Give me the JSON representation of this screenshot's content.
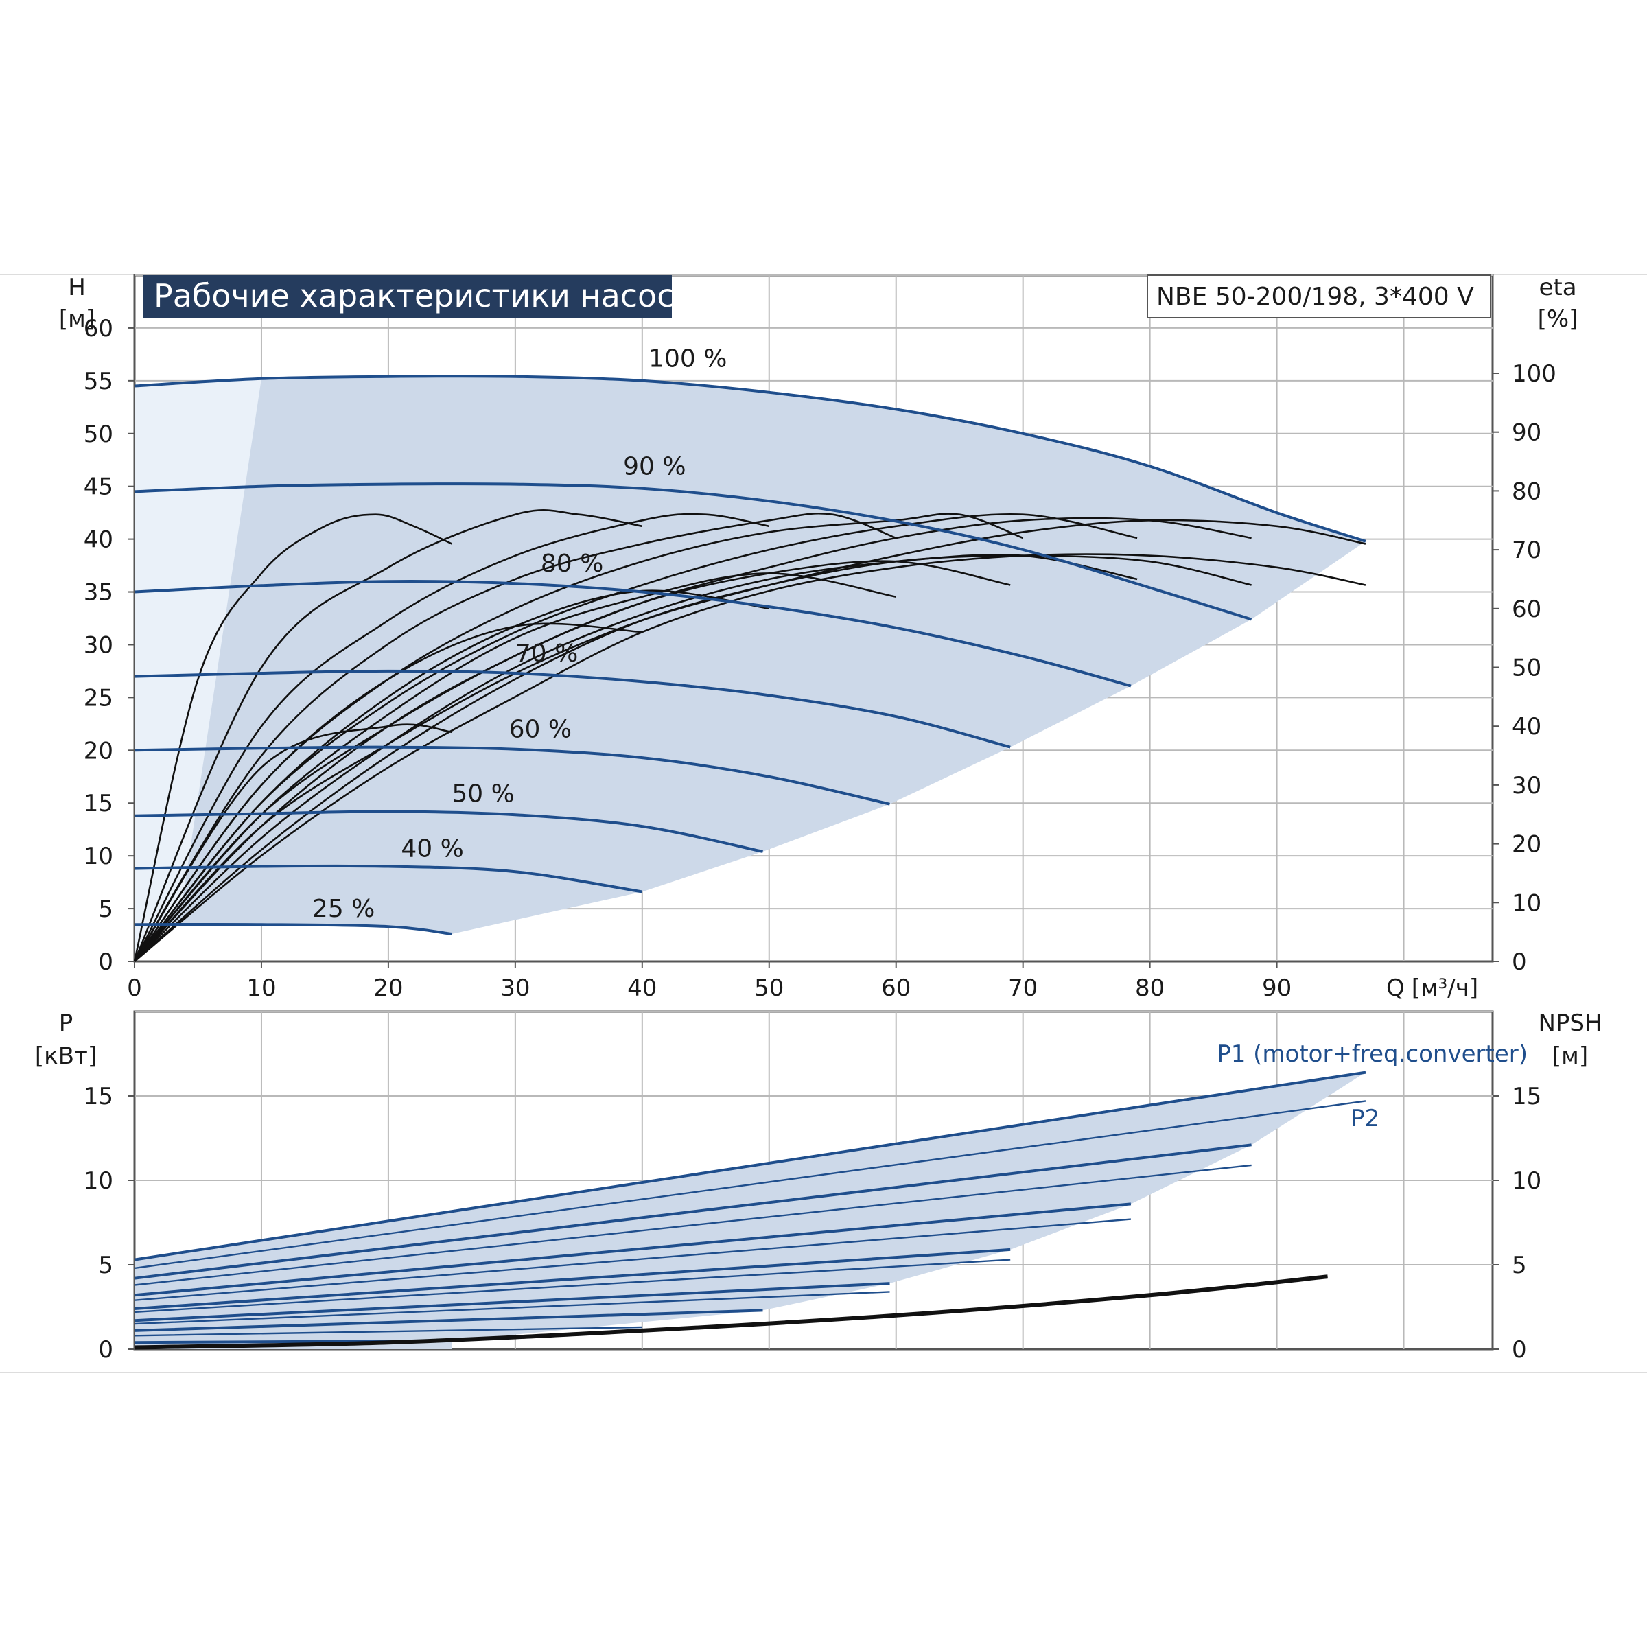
{
  "chart_data": [
    {
      "type": "line",
      "title": "Рабочие характеристики насоса",
      "model": "NBE 50-200/198, 3*400 V",
      "ylabel": "H",
      "yunit": "[м]",
      "y2label": "eta",
      "y2unit": "[%]",
      "xlabel": "Q",
      "xunit": "[м³/ч]",
      "xlim": [
        0,
        107
      ],
      "ylim": [
        0,
        65
      ],
      "y2lim": [
        0,
        100
      ],
      "xticks": [
        "0",
        "10",
        "20",
        "30",
        "40",
        "50",
        "60",
        "70",
        "80",
        "90"
      ],
      "yticks": [
        "0",
        "5",
        "10",
        "15",
        "20",
        "25",
        "30",
        "35",
        "40",
        "45",
        "50",
        "55",
        "60"
      ],
      "y2ticks": [
        "0",
        "10",
        "20",
        "30",
        "40",
        "50",
        "60",
        "70",
        "80",
        "90",
        "100"
      ],
      "grid": true,
      "head_series": [
        {
          "name": "100 %",
          "x": [
            0,
            10,
            20,
            30,
            40,
            50,
            60,
            70,
            80,
            90,
            97
          ],
          "y": [
            54.5,
            55.2,
            55.4,
            55.4,
            55.0,
            53.9,
            52.3,
            50.0,
            46.9,
            42.5,
            39.8
          ]
        },
        {
          "name": "90 %",
          "x": [
            0,
            10,
            20,
            30,
            40,
            50,
            60,
            70,
            80,
            88
          ],
          "y": [
            44.5,
            45.0,
            45.2,
            45.2,
            44.8,
            43.6,
            41.7,
            39.0,
            35.4,
            32.4
          ]
        },
        {
          "name": "80 %",
          "x": [
            0,
            10,
            20,
            30,
            40,
            50,
            60,
            70,
            78.5
          ],
          "y": [
            35.0,
            35.6,
            36.0,
            35.8,
            35.0,
            33.6,
            31.6,
            28.9,
            26.1
          ]
        },
        {
          "name": "70 %",
          "x": [
            0,
            10,
            20,
            30,
            40,
            50,
            60,
            69
          ],
          "y": [
            27.0,
            27.3,
            27.5,
            27.3,
            26.5,
            25.2,
            23.2,
            20.3
          ]
        },
        {
          "name": "60 %",
          "x": [
            0,
            10,
            20,
            30,
            40,
            50,
            59.5
          ],
          "y": [
            20.0,
            20.2,
            20.3,
            20.1,
            19.3,
            17.5,
            14.9
          ]
        },
        {
          "name": "50 %",
          "x": [
            0,
            10,
            20,
            30,
            40,
            49.5
          ],
          "y": [
            13.8,
            14.0,
            14.2,
            13.9,
            12.8,
            10.4
          ]
        },
        {
          "name": "40 %",
          "x": [
            0,
            10,
            20,
            30,
            40
          ],
          "y": [
            8.8,
            9.0,
            9.0,
            8.5,
            6.6
          ]
        },
        {
          "name": "25 %",
          "x": [
            0,
            10,
            20,
            25
          ],
          "y": [
            3.5,
            3.5,
            3.3,
            2.6
          ]
        }
      ],
      "efficiency_series": [
        {
          "x": [
            0,
            5,
            10,
            15,
            19,
            22,
            25
          ],
          "y": [
            0,
            48,
            66,
            74,
            76,
            74,
            71
          ]
        },
        {
          "x": [
            0,
            10,
            20,
            30,
            35,
            40
          ],
          "y": [
            0,
            50,
            67,
            76,
            76,
            74
          ]
        },
        {
          "x": [
            0,
            10,
            20,
            30,
            40,
            45,
            50
          ],
          "y": [
            0,
            40,
            58,
            69,
            75,
            76,
            74
          ]
        },
        {
          "x": [
            0,
            10,
            20,
            30,
            40,
            50,
            55,
            60
          ],
          "y": [
            0,
            35,
            54,
            65,
            71,
            75,
            76,
            72
          ]
        },
        {
          "x": [
            0,
            10,
            20,
            30,
            40,
            50,
            60,
            65,
            70
          ],
          "y": [
            0,
            30,
            48,
            60,
            68,
            73,
            75,
            76,
            72
          ]
        },
        {
          "x": [
            0,
            10,
            20,
            30,
            40,
            50,
            60,
            70,
            79
          ],
          "y": [
            0,
            27,
            44,
            56,
            64,
            70,
            74,
            76,
            72
          ]
        },
        {
          "x": [
            0,
            10,
            20,
            30,
            40,
            50,
            60,
            70,
            80,
            88
          ],
          "y": [
            0,
            25,
            40,
            52,
            61,
            67,
            72,
            75,
            75,
            72
          ]
        },
        {
          "x": [
            0,
            10,
            20,
            30,
            40,
            50,
            60,
            70,
            80,
            90,
            97
          ],
          "y": [
            0,
            23,
            37,
            49,
            58,
            64,
            69,
            73,
            75,
            74,
            71
          ]
        },
        {
          "x": [
            0,
            10,
            20,
            25
          ],
          "y": [
            0,
            33,
            40,
            39
          ]
        },
        {
          "x": [
            0,
            10,
            20,
            30,
            40
          ],
          "y": [
            0,
            30,
            48,
            57,
            56
          ]
        },
        {
          "x": [
            0,
            10,
            20,
            30,
            40,
            50
          ],
          "y": [
            0,
            27,
            45,
            57,
            63,
            60
          ]
        },
        {
          "x": [
            0,
            10,
            20,
            30,
            40,
            50,
            60
          ],
          "y": [
            0,
            25,
            42,
            55,
            62,
            66,
            62
          ]
        },
        {
          "x": [
            0,
            10,
            20,
            30,
            40,
            50,
            60,
            69
          ],
          "y": [
            0,
            23,
            40,
            52,
            61,
            66,
            68,
            64
          ]
        },
        {
          "x": [
            0,
            10,
            20,
            30,
            40,
            50,
            60,
            70,
            79
          ],
          "y": [
            0,
            21,
            37,
            50,
            59,
            65,
            68,
            69,
            65
          ]
        },
        {
          "x": [
            0,
            10,
            20,
            30,
            40,
            50,
            60,
            70,
            80,
            88
          ],
          "y": [
            0,
            19,
            35,
            48,
            58,
            64,
            68,
            69,
            68,
            64
          ]
        },
        {
          "x": [
            0,
            10,
            20,
            30,
            40,
            50,
            60,
            70,
            80,
            90,
            97
          ],
          "y": [
            0,
            18,
            33,
            45,
            56,
            63,
            67,
            69,
            69,
            67,
            64
          ]
        }
      ],
      "operating_area_color": "#cdd9e9",
      "curve_color": "#1f4e8c"
    },
    {
      "type": "line",
      "ylabel": "P",
      "yunit": "[кВт]",
      "y2label": "NPSH",
      "y2unit": "[м]",
      "xlim": [
        0,
        107
      ],
      "ylim": [
        0,
        20
      ],
      "yticks": [
        "0",
        "5",
        "10",
        "15"
      ],
      "y2ticks": [
        "0",
        "5",
        "10",
        "15"
      ],
      "grid": true,
      "p1_label": "P1 (motor+freq.converter)",
      "p2_label": "P2",
      "power_series": [
        {
          "name": "P1 (motor+freq.converter)",
          "x": [
            0,
            97
          ],
          "y": [
            5.3,
            16.4
          ]
        },
        {
          "name": "P2",
          "x": [
            0,
            97
          ],
          "y": [
            4.8,
            14.7
          ]
        },
        {
          "x": [
            0,
            88
          ],
          "y": [
            4.2,
            12.1
          ]
        },
        {
          "x": [
            0,
            88
          ],
          "y": [
            3.8,
            10.9
          ]
        },
        {
          "x": [
            0,
            78.5
          ],
          "y": [
            3.2,
            8.6
          ]
        },
        {
          "x": [
            0,
            78.5
          ],
          "y": [
            2.9,
            7.7
          ]
        },
        {
          "x": [
            0,
            69
          ],
          "y": [
            2.4,
            5.9
          ]
        },
        {
          "x": [
            0,
            69
          ],
          "y": [
            2.2,
            5.3
          ]
        },
        {
          "x": [
            0,
            59.5
          ],
          "y": [
            1.7,
            3.9
          ]
        },
        {
          "x": [
            0,
            59.5
          ],
          "y": [
            1.5,
            3.4
          ]
        },
        {
          "x": [
            0,
            49.5
          ],
          "y": [
            1.1,
            2.3
          ]
        },
        {
          "x": [
            0,
            40
          ],
          "y": [
            0.8,
            1.3
          ]
        },
        {
          "x": [
            0,
            25
          ],
          "y": [
            0.4,
            0.5
          ]
        }
      ],
      "npsh_series": [
        {
          "x": [
            0,
            20,
            40,
            60,
            80,
            94
          ],
          "y": [
            0.1,
            0.4,
            1.1,
            2.0,
            3.2,
            4.3
          ]
        }
      ]
    }
  ]
}
